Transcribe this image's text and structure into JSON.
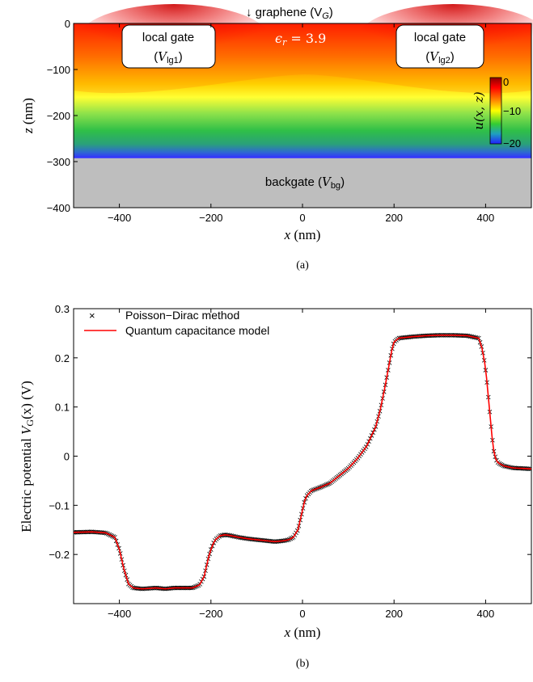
{
  "top_panel": {
    "caption": "(a)",
    "graphene_label": "↓ graphene (V",
    "graphene_sub": "G",
    "graphene_close": ")",
    "eps_label": "ϵ",
    "eps_sub": "r",
    "eps_value": " = 3.9",
    "local_gate_1": {
      "line1": "local gate",
      "var": "V",
      "sub": "lg1"
    },
    "local_gate_2": {
      "line1": "local gate",
      "var": "V",
      "sub": "lg2"
    },
    "backgate": {
      "text": "backgate (",
      "var": "V",
      "sub": "bg",
      "close": ")"
    },
    "xlabel": {
      "var": "x",
      "unit": " (nm)"
    },
    "ylabel": {
      "var": "z",
      "unit": " (nm)"
    },
    "colorbar_label": "u(x, z)",
    "colorbar_ticks": [
      "0",
      "−10",
      "−20"
    ],
    "x_ticks": [
      "−400",
      "−200",
      "0",
      "200",
      "400"
    ],
    "y_ticks": [
      "0",
      "−100",
      "−200",
      "−300",
      "−400"
    ]
  },
  "chart_data": [
    {
      "type": "heatmap",
      "xlim": [
        -500,
        500
      ],
      "ylim": [
        -400,
        0
      ],
      "x_ticks": [
        -400,
        -200,
        0,
        200,
        400
      ],
      "y_ticks": [
        0,
        -100,
        -200,
        -300,
        -400
      ],
      "oxide_region_z": [
        -300,
        0
      ],
      "backgate_region_z": [
        -400,
        -300
      ],
      "local_gates": [
        {
          "label": "local gate (Vlg1)",
          "x": [
            -380,
            -200
          ],
          "z": [
            -95,
            0
          ]
        },
        {
          "label": "local gate (Vlg2)",
          "x": [
            180,
            360
          ],
          "z": [
            -95,
            0
          ]
        }
      ],
      "colorbar": {
        "range": [
          -20,
          0
        ],
        "ticks": [
          0,
          -10,
          -20
        ]
      }
    },
    {
      "type": "line",
      "xlabel": "x (nm)",
      "ylabel": "Electric potential VG(x) (V)",
      "xlim": [
        -500,
        500
      ],
      "ylim": [
        -0.3,
        0.3
      ],
      "x_ticks": [
        -400,
        -200,
        0,
        200,
        400
      ],
      "y_ticks": [
        0.3,
        0.2,
        0.1,
        0,
        -0.1,
        -0.2
      ],
      "legend_position": "top-left",
      "series": [
        {
          "name": "Poisson−Dirac method",
          "style": "markers",
          "x": [
            -500,
            -460,
            -430,
            -410,
            -400,
            -390,
            -380,
            -370,
            -350,
            -320,
            -300,
            -280,
            -260,
            -240,
            -225,
            -215,
            -210,
            -205,
            -200,
            -195,
            -190,
            -180,
            -170,
            -160,
            -140,
            -120,
            -100,
            -80,
            -60,
            -40,
            -30,
            -20,
            -10,
            -5,
            0,
            5,
            10,
            20,
            40,
            60,
            80,
            100,
            120,
            140,
            160,
            170,
            180,
            190,
            195,
            200,
            210,
            240,
            270,
            300,
            330,
            360,
            385,
            392,
            398,
            402,
            406,
            410,
            414,
            418,
            422,
            426,
            430,
            440,
            460,
            480,
            500
          ],
          "y": [
            -0.155,
            -0.154,
            -0.156,
            -0.165,
            -0.19,
            -0.23,
            -0.26,
            -0.268,
            -0.27,
            -0.268,
            -0.27,
            -0.268,
            -0.268,
            -0.268,
            -0.262,
            -0.245,
            -0.225,
            -0.205,
            -0.19,
            -0.178,
            -0.17,
            -0.162,
            -0.16,
            -0.161,
            -0.165,
            -0.168,
            -0.17,
            -0.172,
            -0.174,
            -0.172,
            -0.17,
            -0.165,
            -0.15,
            -0.13,
            -0.11,
            -0.09,
            -0.08,
            -0.07,
            -0.063,
            -0.055,
            -0.04,
            -0.025,
            -0.005,
            0.02,
            0.06,
            0.095,
            0.14,
            0.19,
            0.215,
            0.232,
            0.24,
            0.243,
            0.245,
            0.246,
            0.246,
            0.245,
            0.24,
            0.22,
            0.19,
            0.16,
            0.12,
            0.08,
            0.04,
            0.01,
            -0.005,
            -0.012,
            -0.015,
            -0.02,
            -0.024,
            -0.025,
            -0.026
          ]
        },
        {
          "name": "Quantum capacitance model",
          "style": "line",
          "color": "#ff0000",
          "x": [
            -500,
            -460,
            -430,
            -410,
            -400,
            -390,
            -380,
            -370,
            -350,
            -320,
            -300,
            -280,
            -260,
            -240,
            -225,
            -215,
            -210,
            -205,
            -200,
            -195,
            -190,
            -180,
            -170,
            -160,
            -140,
            -120,
            -100,
            -80,
            -60,
            -40,
            -30,
            -20,
            -10,
            -5,
            0,
            5,
            10,
            20,
            40,
            60,
            80,
            100,
            120,
            140,
            160,
            170,
            180,
            190,
            195,
            200,
            210,
            240,
            270,
            300,
            330,
            360,
            385,
            392,
            398,
            402,
            406,
            410,
            414,
            418,
            422,
            426,
            430,
            440,
            460,
            480,
            500
          ],
          "y": [
            -0.155,
            -0.154,
            -0.156,
            -0.165,
            -0.19,
            -0.23,
            -0.26,
            -0.268,
            -0.27,
            -0.268,
            -0.27,
            -0.268,
            -0.268,
            -0.268,
            -0.262,
            -0.245,
            -0.225,
            -0.205,
            -0.19,
            -0.178,
            -0.17,
            -0.162,
            -0.16,
            -0.161,
            -0.165,
            -0.168,
            -0.17,
            -0.172,
            -0.174,
            -0.172,
            -0.17,
            -0.165,
            -0.15,
            -0.13,
            -0.11,
            -0.09,
            -0.08,
            -0.07,
            -0.063,
            -0.055,
            -0.04,
            -0.025,
            -0.005,
            0.02,
            0.06,
            0.095,
            0.14,
            0.19,
            0.215,
            0.232,
            0.24,
            0.243,
            0.245,
            0.246,
            0.246,
            0.245,
            0.24,
            0.22,
            0.19,
            0.16,
            0.12,
            0.08,
            0.04,
            0.01,
            -0.005,
            -0.012,
            -0.015,
            -0.02,
            -0.024,
            -0.025,
            -0.026
          ]
        }
      ]
    }
  ],
  "bottom_panel": {
    "caption": "(b)",
    "xlabel": {
      "var": "x",
      "unit": " (nm)"
    },
    "ylabel": {
      "pre": "Electric potential ",
      "var": "V",
      "sub": "G",
      "args": "(x) (V)"
    },
    "x_ticks": [
      "−400",
      "−200",
      "0",
      "200",
      "400"
    ],
    "y_ticks": [
      "0.3",
      "0.2",
      "0.1",
      "0",
      "−0.1",
      "−0.2"
    ]
  }
}
